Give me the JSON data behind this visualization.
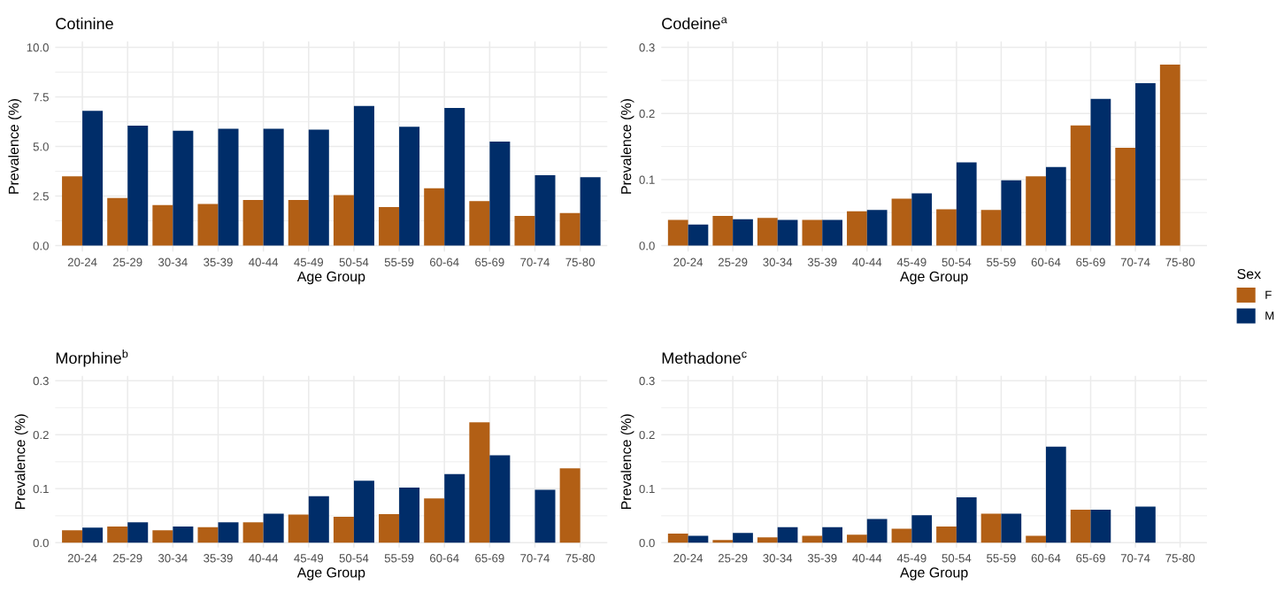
{
  "chart_data": [
    {
      "type": "bar",
      "title": "Cotinine",
      "xlabel": "Age Group",
      "ylabel": "Prevalence (%)",
      "categories": [
        "20-24",
        "25-29",
        "30-34",
        "35-39",
        "40-44",
        "45-49",
        "50-54",
        "55-59",
        "60-64",
        "65-69",
        "70-74",
        "75-80"
      ],
      "ylim": [
        -0.3,
        10.3
      ],
      "yticks": [
        {
          "value": 0,
          "label": "0.0"
        },
        {
          "value": 2.5,
          "label": "2.5"
        },
        {
          "value": 5,
          "label": "5.0"
        },
        {
          "value": 7.5,
          "label": "7.5"
        },
        {
          "value": 10,
          "label": "10.0"
        }
      ],
      "grid": true,
      "legend": "right",
      "legend_title": "Sex",
      "series": [
        {
          "name": "F",
          "color": "#b25f15",
          "values": [
            3.5,
            2.4,
            2.05,
            2.1,
            2.3,
            2.3,
            2.55,
            1.95,
            2.9,
            2.25,
            1.5,
            1.65
          ]
        },
        {
          "name": "M",
          "color": "#002d69",
          "values": [
            6.8,
            6.05,
            5.8,
            5.9,
            5.9,
            5.85,
            7.05,
            6.0,
            6.95,
            5.25,
            3.55,
            3.45
          ]
        }
      ]
    },
    {
      "type": "bar",
      "title": "Codeine$^{a}$",
      "xlabel": "Age Group",
      "ylabel": "Prevalence (%)",
      "categories": [
        "20-24",
        "25-29",
        "30-34",
        "35-39",
        "40-44",
        "45-49",
        "50-54",
        "55-59",
        "60-64",
        "65-69",
        "70-74",
        "75-80"
      ],
      "ylim": [
        -0.009,
        0.309
      ],
      "yticks": [
        {
          "value": 0,
          "label": "0.0"
        },
        0.1,
        0.2,
        0.3
      ],
      "grid": true,
      "series": [
        {
          "color": "#b25f15",
          "values": [
            0.039,
            0.045,
            0.042,
            0.039,
            0.052,
            0.071,
            0.055,
            0.054,
            0.105,
            0.182,
            0.148,
            0.274
          ]
        },
        {
          "color": "#002d69",
          "values": [
            0.032,
            0.04,
            0.039,
            0.039,
            0.054,
            0.079,
            0.126,
            0.099,
            0.119,
            0.222,
            0.246,
            null
          ]
        }
      ]
    },
    {
      "type": "bar",
      "title": "Morphine$^{b}$",
      "xlabel": "Age Group",
      "ylabel": "Prevalence (%)",
      "categories": [
        "20-24",
        "25-29",
        "30-34",
        "35-39",
        "40-44",
        "45-49",
        "50-54",
        "55-59",
        "60-64",
        "65-69",
        "70-74",
        "75-80"
      ],
      "ylim": [
        -0.009,
        0.309
      ],
      "yticks": [
        {
          "value": 0,
          "label": "0.0"
        },
        0.1,
        0.2,
        0.3
      ],
      "grid": true,
      "legend": false,
      "series": [
        {
          "color": "#b25f15",
          "values": [
            0.023,
            0.03,
            0.023,
            0.029,
            0.038,
            0.052,
            0.048,
            0.053,
            0.082,
            0.223,
            null,
            0.138
          ]
        },
        {
          "color": "#002d69",
          "values": [
            0.028,
            0.038,
            0.03,
            0.038,
            0.054,
            0.086,
            0.115,
            0.102,
            0.127,
            0.162,
            0.098,
            null
          ]
        }
      ]
    },
    {
      "type": "bar",
      "title": "Methadone$^{c}$",
      "xlabel": "Age Group",
      "ylabel": "Prevalence (%)",
      "categories": [
        "20-24",
        "25-29",
        "30-34",
        "35-39",
        "40-44",
        "45-49",
        "50-54",
        "55-59",
        "60-64",
        "65-69",
        "70-74",
        "75-80"
      ],
      "ylim": [
        -0.009,
        0.309
      ],
      "yticks": [
        {
          "value": 0,
          "label": "0.0"
        },
        0.1,
        0.2,
        0.3
      ],
      "grid": true,
      "legend": false,
      "series": [
        {
          "color": "#b25f15",
          "values": [
            0.017,
            0.005,
            0.01,
            0.013,
            0.015,
            0.026,
            0.03,
            0.054,
            0.013,
            0.061,
            null,
            null
          ]
        },
        {
          "color": "#002d69",
          "values": [
            0.013,
            0.018,
            0.029,
            0.029,
            0.044,
            0.051,
            0.084,
            0.054,
            0.178,
            0.061,
            0.067,
            null
          ]
        }
      ]
    }
  ]
}
